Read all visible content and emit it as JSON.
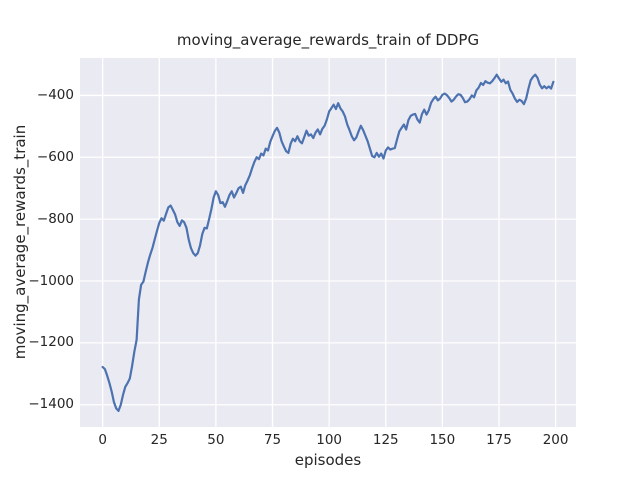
{
  "figure": {
    "title": "moving_average_rewards_train of DDPG",
    "xlabel": "episodes",
    "ylabel": "moving_average_rewards_train"
  },
  "chart_data": {
    "type": "line",
    "title": "moving_average_rewards_train of DDPG",
    "xlabel": "episodes",
    "ylabel": "moving_average_rewards_train",
    "xlim": [
      -10,
      209
    ],
    "ylim": [
      -1472,
      -279
    ],
    "x_ticks": [
      0,
      25,
      50,
      75,
      100,
      125,
      150,
      175,
      200
    ],
    "x_tick_labels": [
      "0",
      "25",
      "50",
      "75",
      "100",
      "125",
      "150",
      "175",
      "200"
    ],
    "y_ticks": [
      -400,
      -600,
      -800,
      -1000,
      -1200,
      -1400
    ],
    "y_tick_labels": [
      "−400",
      "−600",
      "−800",
      "−1000",
      "−1200",
      "−1400"
    ],
    "grid": true,
    "legend": false,
    "style": {
      "fig_bg": "#ffffff",
      "plot_bg": "#eaeaf2",
      "grid_color": "#ffffff",
      "line_color": "#4c72b0",
      "text_color": "#262626"
    },
    "series": [
      {
        "name": "moving_average_rewards_train",
        "color": "#4c72b0",
        "points": [
          [
            0,
            -1278
          ],
          [
            1,
            -1285
          ],
          [
            2,
            -1306
          ],
          [
            3,
            -1330
          ],
          [
            4,
            -1358
          ],
          [
            5,
            -1392
          ],
          [
            6,
            -1412
          ],
          [
            7,
            -1420
          ],
          [
            8,
            -1400
          ],
          [
            9,
            -1368
          ],
          [
            10,
            -1342
          ],
          [
            11,
            -1330
          ],
          [
            12,
            -1315
          ],
          [
            13,
            -1275
          ],
          [
            14,
            -1228
          ],
          [
            15,
            -1190
          ],
          [
            16,
            -1060
          ],
          [
            17,
            -1012
          ],
          [
            18,
            -1002
          ],
          [
            19,
            -970
          ],
          [
            20,
            -940
          ],
          [
            21,
            -915
          ],
          [
            22,
            -893
          ],
          [
            23,
            -865
          ],
          [
            24,
            -838
          ],
          [
            25,
            -812
          ],
          [
            26,
            -797
          ],
          [
            27,
            -805
          ],
          [
            28,
            -783
          ],
          [
            29,
            -762
          ],
          [
            30,
            -756
          ],
          [
            31,
            -770
          ],
          [
            32,
            -785
          ],
          [
            33,
            -810
          ],
          [
            34,
            -822
          ],
          [
            35,
            -804
          ],
          [
            36,
            -810
          ],
          [
            37,
            -828
          ],
          [
            38,
            -866
          ],
          [
            39,
            -894
          ],
          [
            40,
            -910
          ],
          [
            41,
            -918
          ],
          [
            42,
            -910
          ],
          [
            43,
            -885
          ],
          [
            44,
            -848
          ],
          [
            45,
            -828
          ],
          [
            46,
            -830
          ],
          [
            47,
            -800
          ],
          [
            48,
            -768
          ],
          [
            49,
            -730
          ],
          [
            50,
            -710
          ],
          [
            51,
            -722
          ],
          [
            52,
            -748
          ],
          [
            53,
            -745
          ],
          [
            54,
            -760
          ],
          [
            55,
            -742
          ],
          [
            56,
            -722
          ],
          [
            57,
            -710
          ],
          [
            58,
            -730
          ],
          [
            59,
            -716
          ],
          [
            60,
            -700
          ],
          [
            61,
            -695
          ],
          [
            62,
            -715
          ],
          [
            63,
            -690
          ],
          [
            64,
            -675
          ],
          [
            65,
            -658
          ],
          [
            66,
            -635
          ],
          [
            67,
            -615
          ],
          [
            68,
            -600
          ],
          [
            69,
            -606
          ],
          [
            70,
            -588
          ],
          [
            71,
            -594
          ],
          [
            72,
            -572
          ],
          [
            73,
            -578
          ],
          [
            74,
            -550
          ],
          [
            75,
            -532
          ],
          [
            76,
            -515
          ],
          [
            77,
            -505
          ],
          [
            78,
            -520
          ],
          [
            79,
            -548
          ],
          [
            80,
            -565
          ],
          [
            81,
            -580
          ],
          [
            82,
            -586
          ],
          [
            83,
            -556
          ],
          [
            84,
            -540
          ],
          [
            85,
            -548
          ],
          [
            86,
            -532
          ],
          [
            87,
            -548
          ],
          [
            88,
            -555
          ],
          [
            89,
            -535
          ],
          [
            90,
            -514
          ],
          [
            91,
            -530
          ],
          [
            92,
            -526
          ],
          [
            93,
            -538
          ],
          [
            94,
            -520
          ],
          [
            95,
            -510
          ],
          [
            96,
            -526
          ],
          [
            97,
            -508
          ],
          [
            98,
            -498
          ],
          [
            99,
            -478
          ],
          [
            100,
            -452
          ],
          [
            101,
            -441
          ],
          [
            102,
            -430
          ],
          [
            103,
            -444
          ],
          [
            104,
            -425
          ],
          [
            105,
            -442
          ],
          [
            106,
            -452
          ],
          [
            107,
            -468
          ],
          [
            108,
            -494
          ],
          [
            109,
            -512
          ],
          [
            110,
            -532
          ],
          [
            111,
            -545
          ],
          [
            112,
            -536
          ],
          [
            113,
            -516
          ],
          [
            114,
            -498
          ],
          [
            115,
            -512
          ],
          [
            116,
            -530
          ],
          [
            117,
            -548
          ],
          [
            118,
            -572
          ],
          [
            119,
            -596
          ],
          [
            120,
            -600
          ],
          [
            121,
            -586
          ],
          [
            122,
            -598
          ],
          [
            123,
            -588
          ],
          [
            124,
            -604
          ],
          [
            125,
            -578
          ],
          [
            126,
            -568
          ],
          [
            127,
            -575
          ],
          [
            128,
            -572
          ],
          [
            129,
            -570
          ],
          [
            130,
            -542
          ],
          [
            131,
            -516
          ],
          [
            132,
            -505
          ],
          [
            133,
            -494
          ],
          [
            134,
            -510
          ],
          [
            135,
            -480
          ],
          [
            136,
            -466
          ],
          [
            137,
            -462
          ],
          [
            138,
            -460
          ],
          [
            139,
            -478
          ],
          [
            140,
            -488
          ],
          [
            141,
            -460
          ],
          [
            142,
            -446
          ],
          [
            143,
            -462
          ],
          [
            144,
            -448
          ],
          [
            145,
            -424
          ],
          [
            146,
            -412
          ],
          [
            147,
            -404
          ],
          [
            148,
            -416
          ],
          [
            149,
            -410
          ],
          [
            150,
            -398
          ],
          [
            151,
            -394
          ],
          [
            152,
            -399
          ],
          [
            153,
            -408
          ],
          [
            154,
            -420
          ],
          [
            155,
            -414
          ],
          [
            156,
            -404
          ],
          [
            157,
            -396
          ],
          [
            158,
            -398
          ],
          [
            159,
            -408
          ],
          [
            160,
            -422
          ],
          [
            161,
            -420
          ],
          [
            162,
            -412
          ],
          [
            163,
            -400
          ],
          [
            164,
            -406
          ],
          [
            165,
            -384
          ],
          [
            166,
            -375
          ],
          [
            167,
            -360
          ],
          [
            168,
            -366
          ],
          [
            169,
            -354
          ],
          [
            170,
            -359
          ],
          [
            171,
            -361
          ],
          [
            172,
            -354
          ],
          [
            173,
            -344
          ],
          [
            174,
            -333
          ],
          [
            175,
            -345
          ],
          [
            176,
            -356
          ],
          [
            177,
            -349
          ],
          [
            178,
            -361
          ],
          [
            179,
            -355
          ],
          [
            180,
            -382
          ],
          [
            181,
            -394
          ],
          [
            182,
            -410
          ],
          [
            183,
            -421
          ],
          [
            184,
            -414
          ],
          [
            185,
            -418
          ],
          [
            186,
            -428
          ],
          [
            187,
            -410
          ],
          [
            188,
            -378
          ],
          [
            189,
            -351
          ],
          [
            190,
            -340
          ],
          [
            191,
            -333
          ],
          [
            192,
            -343
          ],
          [
            193,
            -365
          ],
          [
            194,
            -377
          ],
          [
            195,
            -370
          ],
          [
            196,
            -377
          ],
          [
            197,
            -371
          ],
          [
            198,
            -378
          ],
          [
            199,
            -356
          ]
        ]
      }
    ]
  }
}
